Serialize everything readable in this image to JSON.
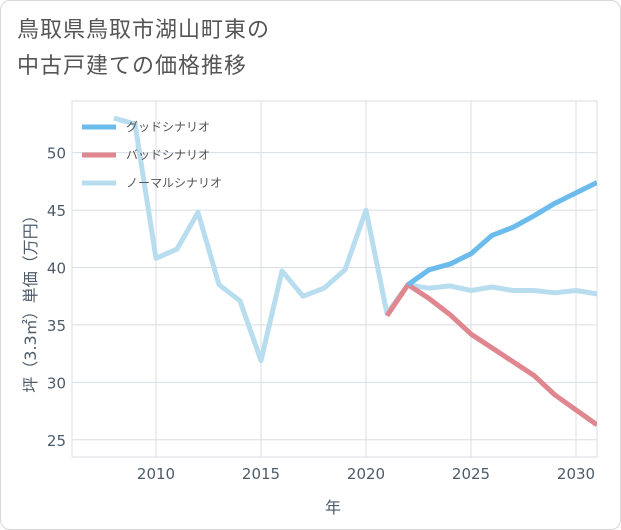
{
  "title": {
    "line1": "鳥取県鳥取市湖山町東の",
    "line2": "中古戸建ての価格推移"
  },
  "chart_data": {
    "type": "line",
    "xlabel": "年",
    "ylabel": "坪（3.3㎡）単価（万円）",
    "xlim": [
      2006,
      2031
    ],
    "ylim": [
      23.5,
      54.5
    ],
    "x_ticks": [
      2010,
      2015,
      2020,
      2025,
      2030
    ],
    "y_ticks": [
      25,
      30,
      35,
      40,
      45,
      50
    ],
    "grid": true,
    "legend_position": "top-left",
    "series": [
      {
        "name": "グッドシナリオ",
        "color": "#6bbbec",
        "x": [
          2022,
          2023,
          2024,
          2025,
          2026,
          2027,
          2028,
          2029,
          2030,
          2031
        ],
        "y": [
          38.5,
          39.8,
          40.3,
          41.2,
          42.8,
          43.5,
          44.5,
          45.6,
          46.5,
          47.4
        ]
      },
      {
        "name": "バッドシナリオ",
        "color": "#e0868f",
        "x": [
          2021,
          2022,
          2023,
          2024,
          2025,
          2026,
          2027,
          2028,
          2029,
          2030,
          2031
        ],
        "y": [
          35.8,
          38.5,
          37.3,
          35.9,
          34.2,
          33.0,
          31.8,
          30.6,
          28.9,
          27.6,
          26.3
        ]
      },
      {
        "name": "ノーマルシナリオ",
        "color": "#b8ddef",
        "x": [
          2008,
          2009,
          2010,
          2011,
          2012,
          2013,
          2014,
          2015,
          2016,
          2017,
          2018,
          2019,
          2020,
          2021,
          2022,
          2023,
          2024,
          2025,
          2026,
          2027,
          2028,
          2029,
          2030,
          2031
        ],
        "y": [
          53.0,
          52.5,
          40.8,
          41.6,
          44.8,
          38.5,
          37.1,
          31.9,
          39.7,
          37.5,
          38.2,
          39.8,
          45.0,
          36.0,
          38.5,
          38.2,
          38.4,
          38.0,
          38.3,
          38.0,
          38.0,
          37.8,
          38.0,
          37.7
        ]
      }
    ]
  }
}
